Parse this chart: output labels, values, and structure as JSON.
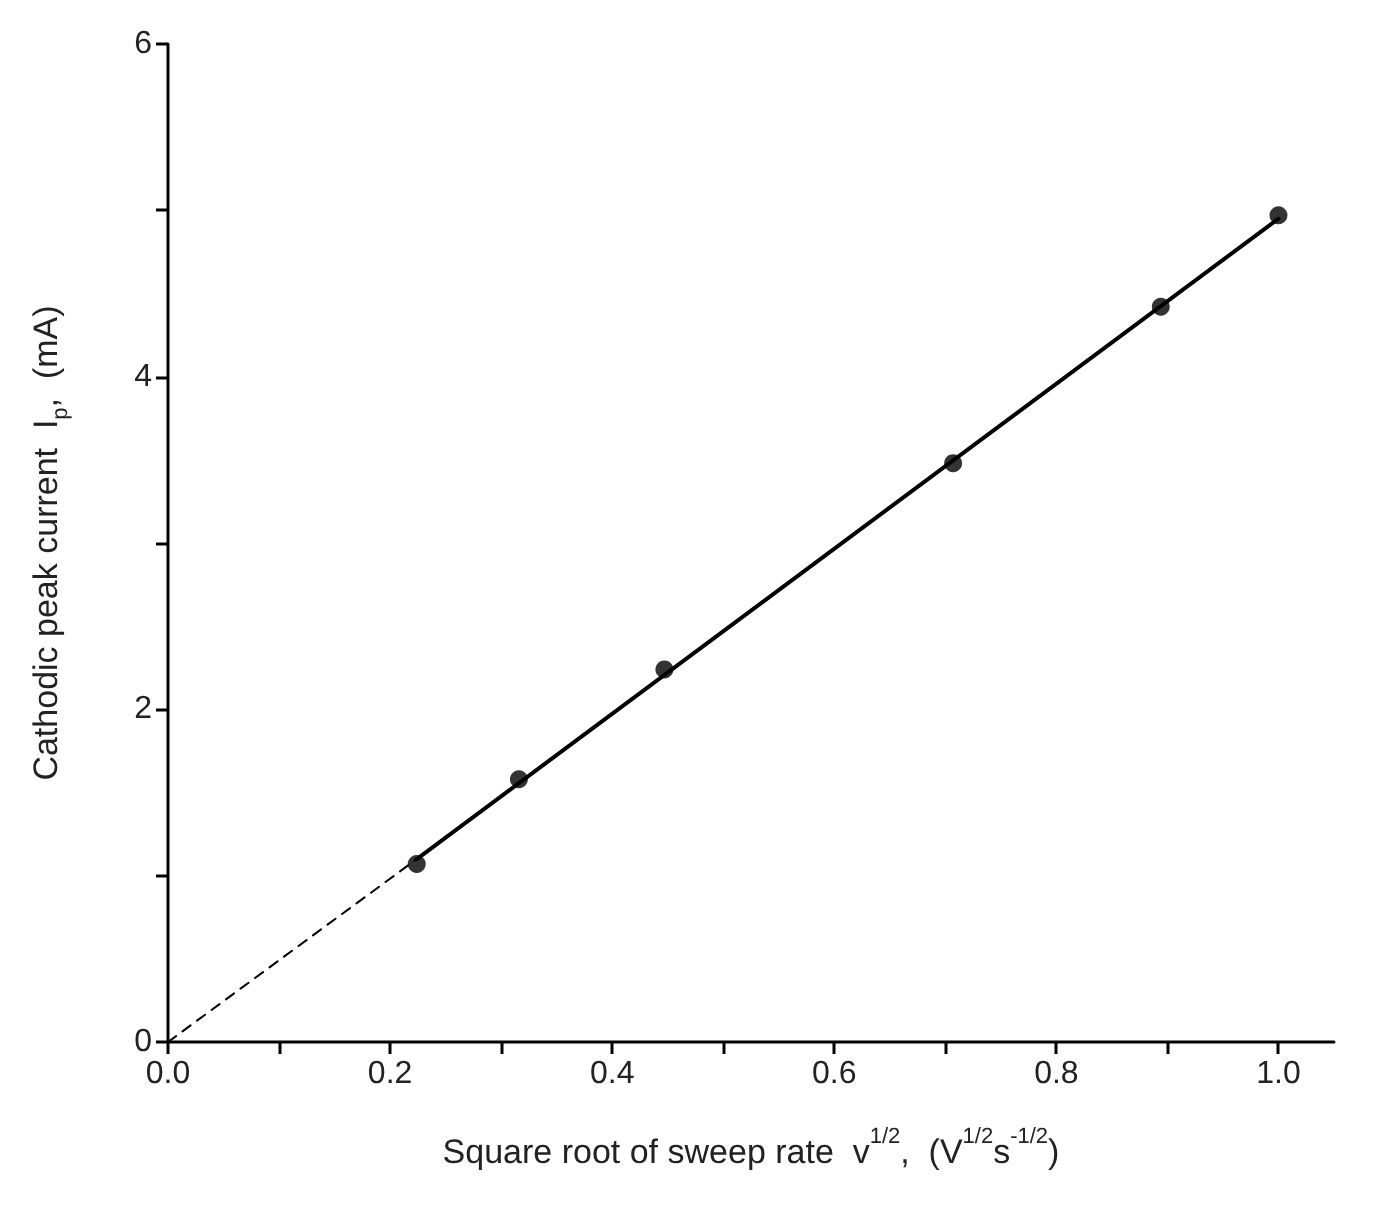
{
  "chart_data": {
    "type": "scatter",
    "xlabel": "Square root of sweep rate  v$^{1/2}$,  (V$^{1/2}$s$^{-1/2}$)",
    "ylabel": "Cathodic peak current  I$_{p}$,  (mA)",
    "xlim": [
      0,
      1.05
    ],
    "ylim": [
      0,
      6
    ],
    "xticks": [
      {
        "value": 0,
        "label": "0.0"
      },
      {
        "value": 0.1,
        "label": null
      },
      {
        "value": 0.2,
        "label": "0.2"
      },
      {
        "value": 0.3,
        "label": null
      },
      {
        "value": 0.4,
        "label": "0.4"
      },
      {
        "value": 0.5,
        "label": null
      },
      {
        "value": 0.6,
        "label": "0.6"
      },
      {
        "value": 0.7,
        "label": null
      },
      {
        "value": 0.8,
        "label": "0.8"
      },
      {
        "value": 0.9,
        "label": null
      },
      {
        "value": 1,
        "label": "1.0"
      }
    ],
    "yticks": [
      0,
      {
        "value": 1,
        "label": null
      },
      2,
      {
        "value": 3,
        "label": null
      },
      4,
      {
        "value": 5,
        "label": null
      },
      6
    ],
    "grid": false,
    "series": [
      {
        "type": "scatter",
        "marker": "circle",
        "color": "#000000",
        "x": [
          0.224,
          0.316,
          0.447,
          0.707,
          0.894,
          1.0
        ],
        "values": [
          1.07,
          1.58,
          2.24,
          3.48,
          4.42,
          4.97
        ]
      },
      {
        "type": "line",
        "marker": "none",
        "line_style": "solid",
        "color": "#000000",
        "x": [
          0.224,
          1.0
        ],
        "values": [
          1.1,
          4.95
        ]
      },
      {
        "type": "line",
        "marker": "none",
        "line_style": "dashed",
        "color": "#000000",
        "x": [
          0,
          0.224
        ],
        "values": [
          0,
          1.1
        ]
      }
    ]
  }
}
